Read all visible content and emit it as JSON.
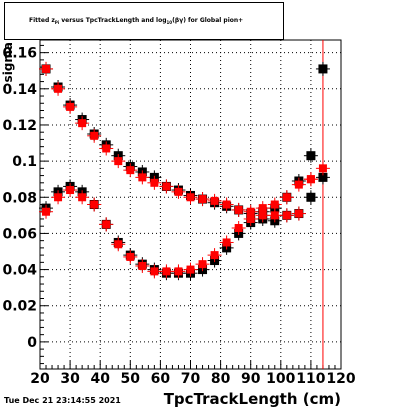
{
  "chart_data": {
    "type": "scatter",
    "title_parts": [
      "Fitted  z",
      "Pi",
      "  versus TpcTrackLength and log",
      "10",
      "(βγ) for Global pion+"
    ],
    "xlabel": "TpcTrackLength (cm)",
    "ylabel": "sigma",
    "xlim": [
      20,
      120
    ],
    "ylim": [
      -0.015,
      0.167
    ],
    "x_ticks": [
      "20",
      "30",
      "40",
      "50",
      "60",
      "70",
      "80",
      "90",
      "100",
      "110",
      "120"
    ],
    "y_ticks": [
      {
        "v": 0.0,
        "label": "0"
      },
      {
        "v": 0.02,
        "label": "0.02"
      },
      {
        "v": 0.04,
        "label": "0.04"
      },
      {
        "v": 0.06,
        "label": "0.06"
      },
      {
        "v": 0.08,
        "label": "0.08"
      },
      {
        "v": 0.1,
        "label": "0.1"
      },
      {
        "v": 0.12,
        "label": "0.12"
      },
      {
        "v": 0.14,
        "label": "0.14"
      },
      {
        "v": 0.16,
        "label": "0.16"
      }
    ],
    "grid": true,
    "vertical_line_x": 114,
    "series": [
      {
        "color": "#000000",
        "points": [
          {
            "x": 22,
            "y": 0.074
          },
          {
            "x": 26,
            "y": 0.083
          },
          {
            "x": 30,
            "y": 0.086
          },
          {
            "x": 34,
            "y": 0.083
          },
          {
            "x": 38,
            "y": 0.076
          },
          {
            "x": 42,
            "y": 0.065
          },
          {
            "x": 46,
            "y": 0.055
          },
          {
            "x": 50,
            "y": 0.048
          },
          {
            "x": 54,
            "y": 0.043
          },
          {
            "x": 58,
            "y": 0.04
          },
          {
            "x": 62,
            "y": 0.038
          },
          {
            "x": 66,
            "y": 0.038
          },
          {
            "x": 70,
            "y": 0.038
          },
          {
            "x": 74,
            "y": 0.04
          },
          {
            "x": 78,
            "y": 0.045
          },
          {
            "x": 82,
            "y": 0.052
          },
          {
            "x": 86,
            "y": 0.06
          },
          {
            "x": 90,
            "y": 0.066
          },
          {
            "x": 94,
            "y": 0.068
          },
          {
            "x": 98,
            "y": 0.067
          },
          {
            "x": 102,
            "y": 0.07
          },
          {
            "x": 106,
            "y": 0.071
          },
          {
            "x": 110,
            "y": 0.08
          },
          {
            "x": 22,
            "y": 0.151
          },
          {
            "x": 26,
            "y": 0.141
          },
          {
            "x": 30,
            "y": 0.131
          },
          {
            "x": 34,
            "y": 0.123
          },
          {
            "x": 38,
            "y": 0.115
          },
          {
            "x": 42,
            "y": 0.109
          },
          {
            "x": 46,
            "y": 0.103
          },
          {
            "x": 50,
            "y": 0.097
          },
          {
            "x": 54,
            "y": 0.094
          },
          {
            "x": 58,
            "y": 0.091
          },
          {
            "x": 62,
            "y": 0.086
          },
          {
            "x": 66,
            "y": 0.084
          },
          {
            "x": 70,
            "y": 0.081
          },
          {
            "x": 74,
            "y": 0.079
          },
          {
            "x": 78,
            "y": 0.077
          },
          {
            "x": 82,
            "y": 0.075
          },
          {
            "x": 86,
            "y": 0.073
          },
          {
            "x": 90,
            "y": 0.071
          },
          {
            "x": 94,
            "y": 0.072
          },
          {
            "x": 98,
            "y": 0.074
          },
          {
            "x": 102,
            "y": 0.08
          },
          {
            "x": 106,
            "y": 0.089
          },
          {
            "x": 110,
            "y": 0.103
          },
          {
            "x": 114,
            "y": 0.091
          },
          {
            "x": 114,
            "y": 0.151
          }
        ]
      },
      {
        "color": "#ff0000",
        "points": [
          {
            "x": 22,
            "y": 0.072
          },
          {
            "x": 26,
            "y": 0.08
          },
          {
            "x": 30,
            "y": 0.084
          },
          {
            "x": 34,
            "y": 0.08
          },
          {
            "x": 38,
            "y": 0.076
          },
          {
            "x": 42,
            "y": 0.065
          },
          {
            "x": 46,
            "y": 0.054
          },
          {
            "x": 50,
            "y": 0.047
          },
          {
            "x": 54,
            "y": 0.042
          },
          {
            "x": 58,
            "y": 0.039
          },
          {
            "x": 62,
            "y": 0.039
          },
          {
            "x": 66,
            "y": 0.039
          },
          {
            "x": 70,
            "y": 0.04
          },
          {
            "x": 74,
            "y": 0.043
          },
          {
            "x": 78,
            "y": 0.048
          },
          {
            "x": 82,
            "y": 0.055
          },
          {
            "x": 86,
            "y": 0.063
          },
          {
            "x": 90,
            "y": 0.068
          },
          {
            "x": 94,
            "y": 0.07
          },
          {
            "x": 98,
            "y": 0.07
          },
          {
            "x": 102,
            "y": 0.07
          },
          {
            "x": 106,
            "y": 0.071
          },
          {
            "x": 110,
            "y": 0.09
          },
          {
            "x": 114,
            "y": 0.096
          },
          {
            "x": 22,
            "y": 0.151
          },
          {
            "x": 26,
            "y": 0.14
          },
          {
            "x": 30,
            "y": 0.13
          },
          {
            "x": 34,
            "y": 0.121
          },
          {
            "x": 38,
            "y": 0.114
          },
          {
            "x": 42,
            "y": 0.107
          },
          {
            "x": 46,
            "y": 0.1
          },
          {
            "x": 50,
            "y": 0.095
          },
          {
            "x": 54,
            "y": 0.091
          },
          {
            "x": 58,
            "y": 0.088
          },
          {
            "x": 62,
            "y": 0.086
          },
          {
            "x": 66,
            "y": 0.083
          },
          {
            "x": 70,
            "y": 0.08
          },
          {
            "x": 74,
            "y": 0.079
          },
          {
            "x": 78,
            "y": 0.078
          },
          {
            "x": 82,
            "y": 0.076
          },
          {
            "x": 86,
            "y": 0.073
          },
          {
            "x": 90,
            "y": 0.072
          },
          {
            "x": 94,
            "y": 0.074
          },
          {
            "x": 98,
            "y": 0.076
          },
          {
            "x": 102,
            "y": 0.08
          },
          {
            "x": 106,
            "y": 0.087
          },
          {
            "x": 110,
            "y": 0.09
          }
        ]
      }
    ]
  },
  "timestamp": "Tue Dec 21 23:14:55 2021"
}
